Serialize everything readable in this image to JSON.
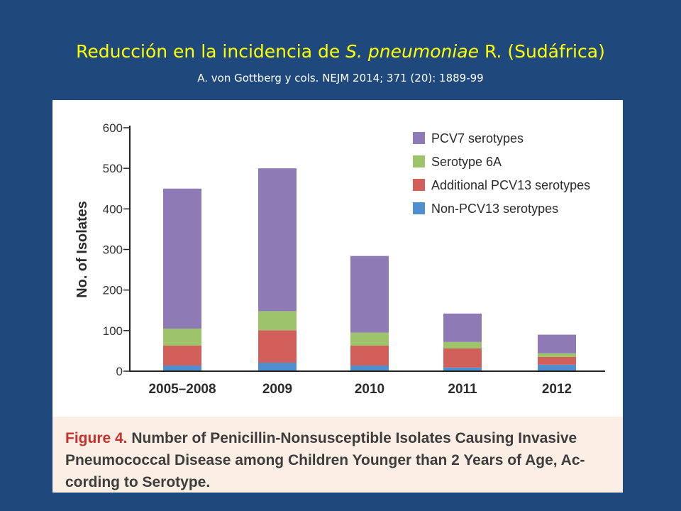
{
  "slide": {
    "title_prefix": "Reducción  en la incidencia de ",
    "title_species": "S. pneumoniae",
    "title_suffix": " R. (Sudáfrica)",
    "subtitle": "A. von Gottberg y cols. NEJM 2014; 371 (20): 1889-99"
  },
  "figure": {
    "caption_label": "Figure 4.",
    "caption_line1": " Number of Penicillin-Nonsusceptible Isolates Causing Invasive",
    "caption_line2": "Pneumococcal Disease among Children Younger than 2 Years of Age, Ac-",
    "caption_line3": "cording to Serotype."
  },
  "chart_data": {
    "type": "bar",
    "stacked": true,
    "categories": [
      "2005–2008",
      "2009",
      "2010",
      "2011",
      "2012"
    ],
    "ylabel": "No. of Isolates",
    "ylim": [
      0,
      600
    ],
    "yticks": [
      0,
      100,
      200,
      300,
      400,
      500,
      600
    ],
    "legend_position": "top-right",
    "series": [
      {
        "name": "Non-PCV13 serotypes",
        "color": "#4f8fd0",
        "values": [
          14,
          21,
          14,
          9,
          16
        ]
      },
      {
        "name": "Additional PCV13 serotypes",
        "color": "#d2605a",
        "values": [
          49,
          80,
          49,
          47,
          19
        ]
      },
      {
        "name": "Serotype 6A",
        "color": "#9dc46a",
        "values": [
          42,
          47,
          32,
          16,
          9
        ]
      },
      {
        "name": "PCV7 serotypes",
        "color": "#8e7ab5",
        "values": [
          345,
          352,
          189,
          70,
          46
        ]
      }
    ]
  }
}
